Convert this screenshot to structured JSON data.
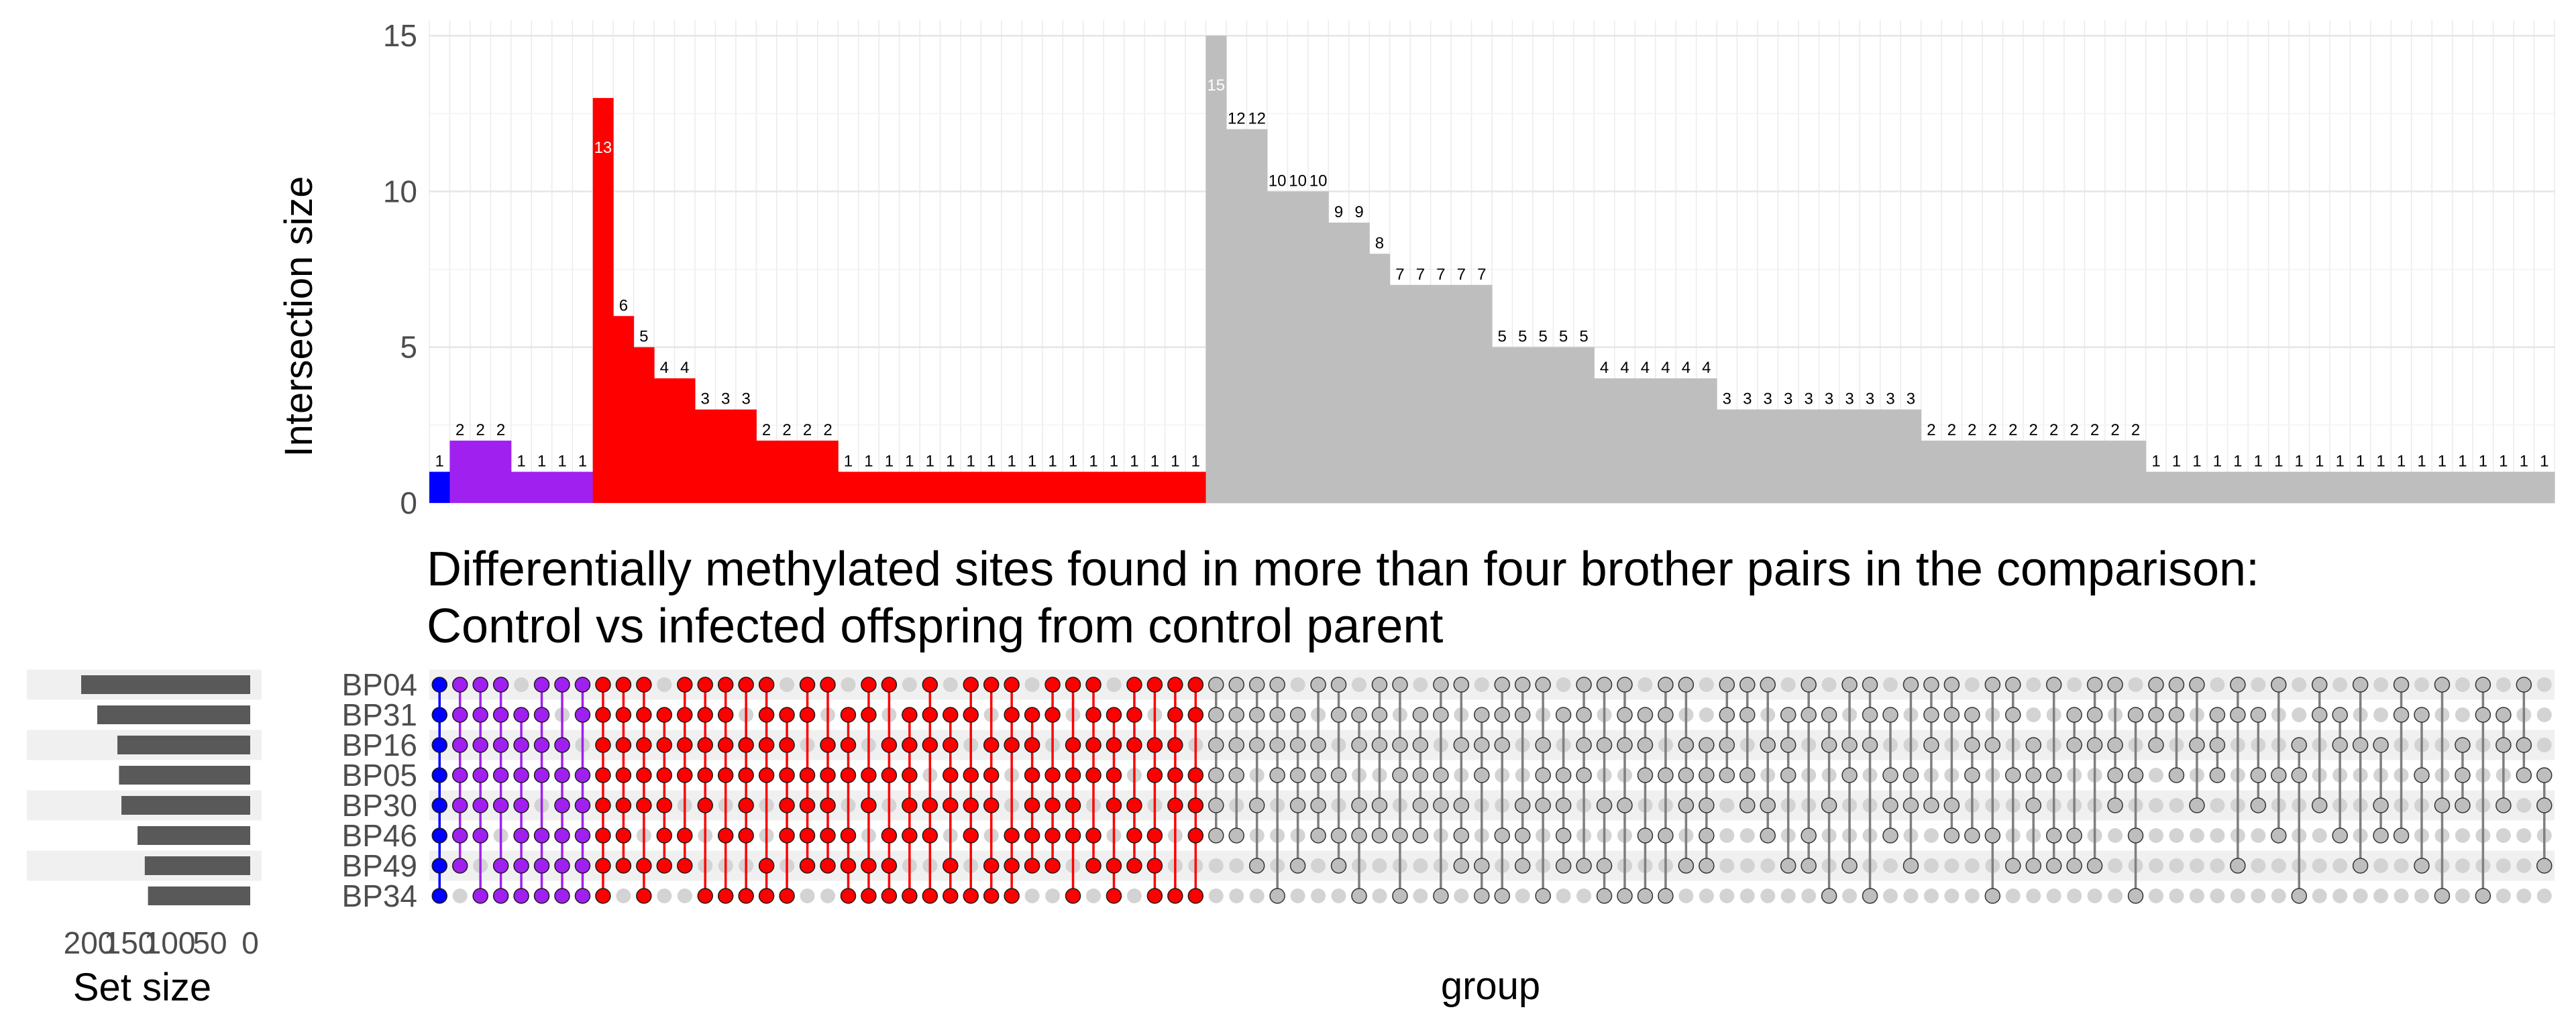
{
  "chart_data": {
    "type": "upset",
    "title_lines": [
      "Differentially methylated sites found in more than four brother pairs in the comparison:",
      "Control vs infected offspring from control parent"
    ],
    "ylabel": "Intersection size",
    "xlabel": "group",
    "set_size_label": "Set size",
    "ylim": [
      0,
      15.5
    ],
    "yticks": [
      0,
      5,
      10,
      15
    ],
    "set_size_ticks": [
      200,
      150,
      100,
      50,
      0
    ],
    "set_size_ticks_text": [
      "200",
      "150",
      "100",
      "50",
      "0"
    ],
    "sets": [
      "BP04",
      "BP31",
      "BP16",
      "BP05",
      "BP30",
      "BP46",
      "BP49",
      "BP34"
    ],
    "set_sizes": [
      210,
      190,
      165,
      163,
      160,
      140,
      131,
      127
    ],
    "colors": {
      "blue": "#0000ff",
      "purple": "#a020f0",
      "red": "#ff0000",
      "grey": "#bebebe",
      "inactive_dot": "#d3d3d3",
      "set_bar": "#595959"
    },
    "intersection_sizes": [
      1,
      2,
      2,
      2,
      1,
      1,
      1,
      1,
      13,
      6,
      5,
      4,
      4,
      3,
      3,
      3,
      2,
      2,
      2,
      2,
      1,
      1,
      1,
      1,
      1,
      1,
      1,
      1,
      1,
      1,
      1,
      1,
      1,
      1,
      1,
      1,
      1,
      1,
      15,
      12,
      12,
      10,
      10,
      10,
      9,
      9,
      8,
      7,
      7,
      7,
      7,
      7,
      5,
      5,
      5,
      5,
      5,
      4,
      4,
      4,
      4,
      4,
      4,
      3,
      3,
      3,
      3,
      3,
      3,
      3,
      3,
      3,
      3,
      2,
      2,
      2,
      2,
      2,
      2,
      2,
      2,
      2,
      2,
      2,
      1,
      1,
      1,
      1,
      1,
      1,
      1,
      1,
      1,
      1,
      1,
      1,
      1,
      1,
      1,
      1,
      1,
      1,
      1,
      1
    ],
    "intersection_groups": [
      "blue",
      "purple",
      "purple",
      "purple",
      "purple",
      "purple",
      "purple",
      "purple",
      "red",
      "red",
      "red",
      "red",
      "red",
      "red",
      "red",
      "red",
      "red",
      "red",
      "red",
      "red",
      "red",
      "red",
      "red",
      "red",
      "red",
      "red",
      "red",
      "red",
      "red",
      "red",
      "red",
      "red",
      "red",
      "red",
      "red",
      "red",
      "red",
      "red",
      "grey",
      "grey",
      "grey",
      "grey",
      "grey",
      "grey",
      "grey",
      "grey",
      "grey",
      "grey",
      "grey",
      "grey",
      "grey",
      "grey",
      "grey",
      "grey",
      "grey",
      "grey",
      "grey",
      "grey",
      "grey",
      "grey",
      "grey",
      "grey",
      "grey",
      "grey",
      "grey",
      "grey",
      "grey",
      "grey",
      "grey",
      "grey",
      "grey",
      "grey",
      "grey",
      "grey",
      "grey",
      "grey",
      "grey",
      "grey",
      "grey",
      "grey",
      "grey",
      "grey",
      "grey",
      "grey",
      "grey",
      "grey",
      "grey",
      "grey",
      "grey",
      "grey",
      "grey",
      "grey",
      "grey",
      "grey",
      "grey",
      "grey",
      "grey",
      "grey",
      "grey",
      "grey",
      "grey",
      "grey",
      "grey",
      "grey"
    ],
    "label_colors": {
      "blue": "#000000",
      "purple": "#000000",
      "red": "#000000",
      "red_tall": "#ffffff",
      "grey": "#000000",
      "grey_tall": "#ffffff"
    },
    "membership": [
      [
        1,
        1,
        1,
        1,
        1,
        1,
        1,
        1
      ],
      [
        1,
        1,
        1,
        1,
        1,
        1,
        1,
        0
      ],
      [
        1,
        1,
        1,
        1,
        1,
        1,
        0,
        1
      ],
      [
        1,
        1,
        1,
        1,
        1,
        0,
        1,
        1
      ],
      [
        0,
        1,
        1,
        1,
        1,
        1,
        1,
        1
      ],
      [
        1,
        1,
        1,
        1,
        0,
        1,
        1,
        1
      ],
      [
        1,
        0,
        1,
        1,
        1,
        1,
        1,
        1
      ],
      [
        1,
        1,
        0,
        1,
        1,
        1,
        1,
        1
      ],
      [
        1,
        1,
        1,
        1,
        1,
        1,
        1,
        1
      ],
      [
        1,
        1,
        1,
        1,
        1,
        1,
        1,
        0
      ],
      [
        1,
        1,
        1,
        1,
        1,
        0,
        1,
        1
      ],
      [
        0,
        1,
        1,
        1,
        1,
        1,
        1,
        0
      ],
      [
        1,
        1,
        1,
        1,
        0,
        1,
        1,
        0
      ],
      [
        1,
        1,
        1,
        1,
        1,
        0,
        0,
        1
      ],
      [
        1,
        1,
        1,
        1,
        0,
        1,
        0,
        1
      ],
      [
        1,
        0,
        1,
        1,
        1,
        1,
        0,
        1
      ],
      [
        1,
        1,
        1,
        1,
        0,
        0,
        1,
        1
      ],
      [
        0,
        1,
        1,
        1,
        1,
        1,
        0,
        1
      ],
      [
        1,
        1,
        0,
        1,
        1,
        1,
        1,
        0
      ],
      [
        1,
        0,
        1,
        1,
        1,
        1,
        1,
        0
      ],
      [
        0,
        1,
        1,
        1,
        0,
        1,
        1,
        1
      ],
      [
        1,
        1,
        0,
        1,
        1,
        0,
        1,
        1
      ],
      [
        1,
        0,
        1,
        1,
        0,
        1,
        1,
        1
      ],
      [
        0,
        1,
        1,
        1,
        1,
        1,
        0,
        1
      ],
      [
        1,
        1,
        1,
        0,
        1,
        1,
        0,
        1
      ],
      [
        0,
        1,
        1,
        1,
        1,
        0,
        1,
        1
      ],
      [
        1,
        1,
        0,
        1,
        1,
        1,
        0,
        1
      ],
      [
        1,
        0,
        1,
        1,
        1,
        0,
        1,
        1
      ],
      [
        1,
        1,
        1,
        0,
        0,
        1,
        1,
        1
      ],
      [
        0,
        1,
        1,
        1,
        1,
        1,
        1,
        0
      ],
      [
        1,
        1,
        0,
        1,
        1,
        1,
        1,
        0
      ],
      [
        1,
        0,
        1,
        1,
        1,
        1,
        0,
        1
      ],
      [
        1,
        1,
        1,
        1,
        0,
        1,
        1,
        0
      ],
      [
        0,
        1,
        1,
        1,
        1,
        0,
        1,
        1
      ],
      [
        1,
        1,
        1,
        0,
        1,
        1,
        1,
        0
      ],
      [
        1,
        0,
        1,
        1,
        0,
        1,
        1,
        1
      ],
      [
        1,
        1,
        1,
        1,
        1,
        0,
        0,
        1
      ],
      [
        1,
        1,
        0,
        1,
        1,
        1,
        0,
        1
      ],
      [
        1,
        1,
        1,
        1,
        1,
        1,
        0,
        0
      ],
      [
        1,
        1,
        1,
        1,
        0,
        1,
        0,
        0
      ],
      [
        1,
        1,
        1,
        0,
        1,
        0,
        1,
        0
      ],
      [
        1,
        1,
        1,
        1,
        0,
        0,
        0,
        1
      ],
      [
        0,
        1,
        1,
        1,
        1,
        0,
        1,
        0
      ],
      [
        1,
        0,
        1,
        1,
        1,
        1,
        0,
        0
      ],
      [
        1,
        1,
        0,
        1,
        0,
        1,
        1,
        0
      ],
      [
        0,
        1,
        1,
        0,
        1,
        1,
        0,
        1
      ],
      [
        1,
        1,
        1,
        0,
        1,
        1,
        0,
        0
      ],
      [
        1,
        0,
        1,
        1,
        0,
        1,
        0,
        1
      ],
      [
        0,
        1,
        1,
        1,
        1,
        1,
        0,
        0
      ],
      [
        1,
        1,
        0,
        1,
        1,
        0,
        0,
        1
      ],
      [
        1,
        0,
        1,
        0,
        1,
        1,
        1,
        0
      ],
      [
        0,
        1,
        1,
        1,
        0,
        0,
        1,
        1
      ],
      [
        1,
        1,
        1,
        0,
        0,
        1,
        0,
        1
      ],
      [
        1,
        1,
        0,
        0,
        1,
        1,
        1,
        0
      ],
      [
        1,
        0,
        1,
        1,
        1,
        0,
        0,
        1
      ],
      [
        0,
        1,
        0,
        1,
        1,
        1,
        1,
        0
      ],
      [
        1,
        1,
        1,
        1,
        0,
        0,
        1,
        0
      ],
      [
        1,
        0,
        1,
        0,
        1,
        0,
        1,
        1
      ],
      [
        1,
        1,
        1,
        0,
        1,
        0,
        0,
        1
      ],
      [
        0,
        1,
        1,
        1,
        0,
        1,
        0,
        1
      ],
      [
        1,
        1,
        0,
        1,
        0,
        1,
        0,
        1
      ],
      [
        1,
        0,
        1,
        1,
        1,
        0,
        1,
        0
      ],
      [
        0,
        0,
        1,
        1,
        1,
        1,
        1,
        0
      ],
      [
        1,
        1,
        1,
        1,
        0,
        0,
        0,
        0
      ],
      [
        1,
        1,
        0,
        1,
        1,
        0,
        0,
        0
      ],
      [
        1,
        0,
        1,
        0,
        1,
        1,
        0,
        0
      ],
      [
        0,
        1,
        1,
        1,
        0,
        0,
        1,
        0
      ],
      [
        1,
        1,
        0,
        0,
        0,
        1,
        1,
        0
      ],
      [
        0,
        1,
        1,
        0,
        1,
        0,
        0,
        1
      ],
      [
        1,
        0,
        1,
        1,
        0,
        0,
        1,
        0
      ],
      [
        1,
        1,
        1,
        0,
        0,
        0,
        0,
        1
      ],
      [
        0,
        1,
        0,
        1,
        1,
        1,
        0,
        0
      ],
      [
        1,
        0,
        0,
        1,
        1,
        0,
        1,
        0
      ],
      [
        1,
        1,
        1,
        0,
        1,
        0,
        0,
        0
      ],
      [
        1,
        1,
        0,
        0,
        1,
        1,
        0,
        0
      ],
      [
        0,
        1,
        1,
        1,
        0,
        1,
        0,
        0
      ],
      [
        1,
        0,
        1,
        0,
        0,
        1,
        0,
        1
      ],
      [
        1,
        1,
        0,
        1,
        0,
        0,
        1,
        0
      ],
      [
        0,
        0,
        1,
        1,
        1,
        0,
        1,
        0
      ],
      [
        1,
        0,
        0,
        1,
        0,
        1,
        1,
        0
      ],
      [
        0,
        1,
        1,
        0,
        0,
        1,
        1,
        0
      ],
      [
        1,
        1,
        1,
        0,
        0,
        0,
        1,
        0
      ],
      [
        1,
        0,
        1,
        1,
        1,
        0,
        0,
        0
      ],
      [
        0,
        1,
        0,
        1,
        0,
        1,
        0,
        1
      ],
      [
        1,
        1,
        1,
        0,
        0,
        0,
        0,
        0
      ],
      [
        1,
        1,
        0,
        1,
        0,
        0,
        0,
        0
      ],
      [
        1,
        0,
        1,
        0,
        1,
        0,
        0,
        0
      ],
      [
        0,
        1,
        1,
        1,
        0,
        0,
        0,
        0
      ],
      [
        1,
        1,
        0,
        0,
        0,
        0,
        1,
        0
      ],
      [
        0,
        1,
        0,
        1,
        1,
        0,
        0,
        0
      ],
      [
        1,
        0,
        0,
        1,
        0,
        1,
        0,
        0
      ],
      [
        0,
        0,
        1,
        1,
        0,
        0,
        0,
        1
      ],
      [
        1,
        1,
        0,
        0,
        1,
        0,
        0,
        0
      ],
      [
        0,
        1,
        1,
        0,
        0,
        1,
        0,
        0
      ],
      [
        1,
        0,
        1,
        0,
        0,
        0,
        1,
        0
      ],
      [
        0,
        0,
        1,
        0,
        1,
        1,
        0,
        0
      ],
      [
        1,
        1,
        0,
        0,
        0,
        1,
        0,
        0
      ],
      [
        0,
        1,
        0,
        1,
        0,
        0,
        1,
        0
      ],
      [
        1,
        0,
        0,
        0,
        1,
        0,
        0,
        1
      ],
      [
        0,
        0,
        1,
        1,
        1,
        0,
        0,
        0
      ],
      [
        1,
        1,
        0,
        0,
        0,
        0,
        0,
        1
      ],
      [
        0,
        1,
        1,
        0,
        1,
        0,
        0,
        0
      ],
      [
        1,
        0,
        1,
        1,
        0,
        0,
        0,
        0
      ],
      [
        0,
        0,
        0,
        1,
        1,
        0,
        1,
        0
      ]
    ]
  }
}
